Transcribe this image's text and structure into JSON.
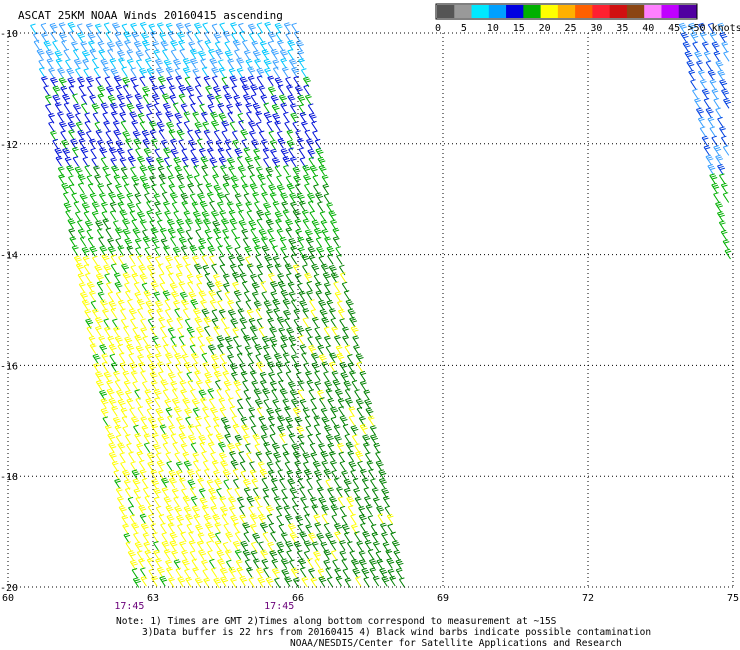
{
  "header": {
    "title": "ASCAT 25KM NOAA Winds 20160415 ascending"
  },
  "colorbar": {
    "labels": [
      "0",
      "5",
      "10",
      "15",
      "20",
      "25",
      "30",
      "35",
      "40",
      "45",
      ">50 knots"
    ],
    "colors": [
      "#555555",
      "#999999",
      "#00e8ff",
      "#00a0ff",
      "#0000e0",
      "#00b000",
      "#ffff00",
      "#ffb000",
      "#ff6000",
      "#ff2030",
      "#d01010",
      "#8b4513",
      "#ff80ff",
      "#c000ff",
      "#5000a0"
    ]
  },
  "chart_data": {
    "type": "wind-barb map",
    "x_ticks": [
      "60",
      "63",
      "66",
      "69",
      "72",
      "75"
    ],
    "y_ticks": [
      "-10",
      "-12",
      "-14",
      "-16",
      "-18",
      "-20"
    ],
    "xlim": [
      60,
      75
    ],
    "ylim": [
      -20,
      -10
    ],
    "grid": "dotted",
    "time_labels": [
      {
        "lon": 62.2,
        "text": "17:45"
      },
      {
        "lon": 65.3,
        "text": "17:45"
      }
    ],
    "swaths": [
      {
        "name": "main swath",
        "corners_lonlat": [
          [
            60.6,
            -10.0
          ],
          [
            66.0,
            -10.0
          ],
          [
            68.2,
            -20.0
          ],
          [
            62.7,
            -20.0
          ]
        ]
      },
      {
        "name": "east swath edge",
        "corners_lonlat": [
          [
            74.0,
            -10.0
          ],
          [
            75.0,
            -10.0
          ],
          [
            75.0,
            -14.3
          ]
        ]
      }
    ],
    "speed_zones": [
      {
        "lat_from": -10.0,
        "lat_to": -11.0,
        "speed_range_knots": "10-15",
        "color": "#00b8ff"
      },
      {
        "lat_from": -11.0,
        "lat_to": -12.6,
        "speed_range_knots": "15-20",
        "color": "#0000e0"
      },
      {
        "lat_from": -12.6,
        "lat_to": -14.0,
        "speed_range_knots": "20-25",
        "color": "#00b000"
      },
      {
        "lat_from": -14.0,
        "lat_to": -20.0,
        "speed_range_knots": "25-30 (west), 20-25 (east)",
        "color": "#ffff00 / #008000"
      }
    ]
  },
  "notes": {
    "line1": "Note: 1) Times are GMT 2)Times along bottom correspond to measurement at ~15S",
    "line2": "3)Data buffer is 22 hrs from 20160415 4) Black wind barbs indicate possible contamination",
    "line3": "NOAA/NESDIS/Center for Satellite Applications and Research"
  }
}
